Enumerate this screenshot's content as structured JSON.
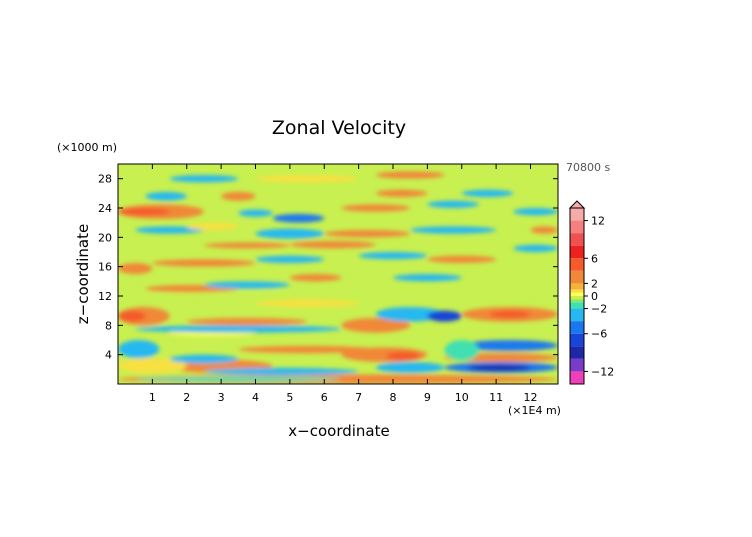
{
  "chart_data": {
    "type": "heatmap",
    "title": "Zonal Velocity",
    "xlabel": "x−coordinate",
    "ylabel": "z−coordinate",
    "x_units": "(×1E4 m)",
    "y_units": "(×1000 m)",
    "time_label": "70800 s",
    "xlim": [
      0,
      12.8
    ],
    "ylim": [
      0,
      30
    ],
    "x_ticks": [
      {
        "value": 1,
        "label": "1"
      },
      {
        "value": 2,
        "label": "2"
      },
      {
        "value": 3,
        "label": "3"
      },
      {
        "value": 4,
        "label": "4"
      },
      {
        "value": 5,
        "label": "5"
      },
      {
        "value": 6,
        "label": "6"
      },
      {
        "value": 7,
        "label": "7"
      },
      {
        "value": 8,
        "label": "8"
      },
      {
        "value": 9,
        "label": "9"
      },
      {
        "value": 10,
        "label": "10"
      },
      {
        "value": 11,
        "label": "11"
      },
      {
        "value": 12,
        "label": "12"
      }
    ],
    "y_ticks": [
      {
        "value": 4,
        "label": "4"
      },
      {
        "value": 8,
        "label": "8"
      },
      {
        "value": 12,
        "label": "12"
      },
      {
        "value": 16,
        "label": "16"
      },
      {
        "value": 20,
        "label": "20"
      },
      {
        "value": 24,
        "label": "24"
      },
      {
        "value": 28,
        "label": "28"
      }
    ],
    "colorbar": {
      "range": [
        -14,
        14
      ],
      "ticks": [
        {
          "value": 12,
          "label": "12"
        },
        {
          "value": 6,
          "label": "6"
        },
        {
          "value": 2,
          "label": "2"
        },
        {
          "value": 0,
          "label": "0"
        },
        {
          "value": -2,
          "label": "−2"
        },
        {
          "value": -6,
          "label": "−6"
        },
        {
          "value": -12,
          "label": "−12"
        }
      ],
      "levels": [
        {
          "from": 14,
          "to": 12,
          "color": "#f7aaaa"
        },
        {
          "from": 12,
          "to": 10,
          "color": "#f58080"
        },
        {
          "from": 10,
          "to": 8,
          "color": "#f05050"
        },
        {
          "from": 8,
          "to": 6,
          "color": "#ee2020"
        },
        {
          "from": 6,
          "to": 4,
          "color": "#f55a2a"
        },
        {
          "from": 4,
          "to": 2,
          "color": "#f08838"
        },
        {
          "from": 2,
          "to": 1,
          "color": "#f4b23a"
        },
        {
          "from": 1,
          "to": 0.5,
          "color": "#f8e040"
        },
        {
          "from": 0.5,
          "to": 0,
          "color": "#ffff55"
        },
        {
          "from": 0,
          "to": -0.5,
          "color": "#c8f050"
        },
        {
          "from": -0.5,
          "to": -1,
          "color": "#90e860"
        },
        {
          "from": -1,
          "to": -2,
          "color": "#40e0b0"
        },
        {
          "from": -2,
          "to": -4,
          "color": "#28b8f0"
        },
        {
          "from": -4,
          "to": -6,
          "color": "#1a78ee"
        },
        {
          "from": -6,
          "to": -8,
          "color": "#1844d8"
        },
        {
          "from": -8,
          "to": -10,
          "color": "#1c28a8"
        },
        {
          "from": -10,
          "to": -12,
          "color": "#7a3cc8"
        },
        {
          "from": -12,
          "to": -14,
          "color": "#f040b8"
        }
      ]
    },
    "bands": [
      {
        "x": [
          0.0,
          12.8
        ],
        "z": [
          0.0,
          1.3
        ],
        "value": 2.5
      },
      {
        "x": [
          0.5,
          6.5
        ],
        "z": [
          0.3,
          1.0
        ],
        "value": -1.5
      },
      {
        "x": [
          1.5,
          4.5
        ],
        "z": [
          1.5,
          3.3
        ],
        "value": 3
      },
      {
        "x": [
          0.0,
          2.0
        ],
        "z": [
          1.5,
          3.5
        ],
        "value": 0.6
      },
      {
        "x": [
          2.5,
          7.0
        ],
        "z": [
          1.2,
          2.2
        ],
        "value": -3
      },
      {
        "x": [
          7.5,
          9.5
        ],
        "z": [
          1.5,
          3.0
        ],
        "value": -3
      },
      {
        "x": [
          9.5,
          12.8
        ],
        "z": [
          1.5,
          3.0
        ],
        "value": -5
      },
      {
        "x": [
          10.2,
          12.0
        ],
        "z": [
          1.8,
          2.6
        ],
        "value": -8
      },
      {
        "x": [
          0.0,
          1.2
        ],
        "z": [
          3.5,
          6.0
        ],
        "value": -3
      },
      {
        "x": [
          1.5,
          3.5
        ],
        "z": [
          2.8,
          4.0
        ],
        "value": -2.5
      },
      {
        "x": [
          3.5,
          7.5
        ],
        "z": [
          4.2,
          5.2
        ],
        "value": 3.5
      },
      {
        "x": [
          6.5,
          9.0
        ],
        "z": [
          3.0,
          5.0
        ],
        "value": 3
      },
      {
        "x": [
          7.8,
          8.8
        ],
        "z": [
          3.2,
          4.4
        ],
        "value": 5
      },
      {
        "x": [
          9.5,
          12.8
        ],
        "z": [
          3.0,
          4.2
        ],
        "value": 3
      },
      {
        "x": [
          10.0,
          12.8
        ],
        "z": [
          4.5,
          6.0
        ],
        "value": -5
      },
      {
        "x": [
          9.5,
          10.5
        ],
        "z": [
          3.2,
          6.0
        ],
        "value": -1.5
      },
      {
        "x": [
          1.5,
          4.0
        ],
        "z": [
          6.5,
          7.5
        ],
        "value": 0.3
      },
      {
        "x": [
          0.5,
          6.5
        ],
        "z": [
          7.0,
          8.0
        ],
        "value": -2.5
      },
      {
        "x": [
          0.0,
          1.5
        ],
        "z": [
          8.0,
          10.5
        ],
        "value": 3.5
      },
      {
        "x": [
          0.0,
          0.8
        ],
        "z": [
          8.5,
          10.0
        ],
        "value": 6
      },
      {
        "x": [
          2.0,
          5.5
        ],
        "z": [
          8.0,
          9.0
        ],
        "value": 3
      },
      {
        "x": [
          6.5,
          8.5
        ],
        "z": [
          7.0,
          9.0
        ],
        "value": 3
      },
      {
        "x": [
          7.5,
          9.5
        ],
        "z": [
          8.5,
          10.5
        ],
        "value": -3
      },
      {
        "x": [
          9.0,
          10.0
        ],
        "z": [
          8.5,
          10.0
        ],
        "value": -6
      },
      {
        "x": [
          10.0,
          12.8
        ],
        "z": [
          8.5,
          10.5
        ],
        "value": 3
      },
      {
        "x": [
          10.8,
          12.0
        ],
        "z": [
          9.0,
          10.0
        ],
        "value": 5
      },
      {
        "x": [
          4.0,
          7.0
        ],
        "z": [
          10.5,
          11.5
        ],
        "value": 0.6
      },
      {
        "x": [
          0.0,
          12.8
        ],
        "z": [
          11.8,
          12.5
        ],
        "value": -0.2
      },
      {
        "x": [
          0.8,
          3.5
        ],
        "z": [
          12.5,
          13.5
        ],
        "value": 3
      },
      {
        "x": [
          2.5,
          5.0
        ],
        "z": [
          13.0,
          14.0
        ],
        "value": -2.5
      },
      {
        "x": [
          5.0,
          6.5
        ],
        "z": [
          14.0,
          15.0
        ],
        "value": 3
      },
      {
        "x": [
          8.0,
          10.0
        ],
        "z": [
          14.0,
          15.0
        ],
        "value": -2
      },
      {
        "x": [
          0.0,
          1.0
        ],
        "z": [
          15.0,
          16.5
        ],
        "value": 3
      },
      {
        "x": [
          1.0,
          4.0
        ],
        "z": [
          16.0,
          17.0
        ],
        "value": 3
      },
      {
        "x": [
          4.0,
          6.0
        ],
        "z": [
          16.5,
          17.5
        ],
        "value": -2.5
      },
      {
        "x": [
          7.0,
          9.0
        ],
        "z": [
          17.0,
          18.0
        ],
        "value": -2.5
      },
      {
        "x": [
          9.0,
          11.0
        ],
        "z": [
          16.5,
          17.5
        ],
        "value": 2.5
      },
      {
        "x": [
          11.5,
          12.8
        ],
        "z": [
          18.0,
          19.0
        ],
        "value": -2.5
      },
      {
        "x": [
          2.5,
          5.0
        ],
        "z": [
          18.5,
          19.3
        ],
        "value": 3
      },
      {
        "x": [
          5.0,
          7.5
        ],
        "z": [
          18.5,
          19.5
        ],
        "value": 3
      },
      {
        "x": [
          6.0,
          8.5
        ],
        "z": [
          20.0,
          21.0
        ],
        "value": 3
      },
      {
        "x": [
          4.0,
          6.0
        ],
        "z": [
          19.8,
          21.2
        ],
        "value": -2.5
      },
      {
        "x": [
          0.5,
          2.5
        ],
        "z": [
          20.5,
          21.5
        ],
        "value": -3
      },
      {
        "x": [
          2.0,
          3.5
        ],
        "z": [
          21.0,
          22.0
        ],
        "value": 0.7
      },
      {
        "x": [
          8.5,
          11.0
        ],
        "z": [
          20.5,
          21.5
        ],
        "value": -2
      },
      {
        "x": [
          12.0,
          12.8
        ],
        "z": [
          20.5,
          21.5
        ],
        "value": 3
      },
      {
        "x": [
          0.0,
          2.5
        ],
        "z": [
          22.5,
          24.5
        ],
        "value": 4
      },
      {
        "x": [
          0.0,
          1.5
        ],
        "z": [
          23.0,
          24.0
        ],
        "value": 6
      },
      {
        "x": [
          3.5,
          4.5
        ],
        "z": [
          22.8,
          23.8
        ],
        "value": -3
      },
      {
        "x": [
          4.5,
          6.0
        ],
        "z": [
          22.0,
          23.2
        ],
        "value": -5
      },
      {
        "x": [
          6.5,
          8.5
        ],
        "z": [
          23.5,
          24.5
        ],
        "value": 3
      },
      {
        "x": [
          9.0,
          10.5
        ],
        "z": [
          24.0,
          25.0
        ],
        "value": -3
      },
      {
        "x": [
          11.5,
          12.8
        ],
        "z": [
          23.0,
          24.0
        ],
        "value": -2.5
      },
      {
        "x": [
          0.8,
          2.0
        ],
        "z": [
          25.0,
          26.2
        ],
        "value": -3
      },
      {
        "x": [
          3.0,
          4.0
        ],
        "z": [
          25.0,
          26.2
        ],
        "value": 3
      },
      {
        "x": [
          7.5,
          9.0
        ],
        "z": [
          25.5,
          26.5
        ],
        "value": 3
      },
      {
        "x": [
          10.0,
          11.5
        ],
        "z": [
          25.5,
          26.5
        ],
        "value": -3
      },
      {
        "x": [
          1.5,
          3.5
        ],
        "z": [
          27.5,
          28.5
        ],
        "value": -2.5
      },
      {
        "x": [
          4.0,
          7.0
        ],
        "z": [
          27.5,
          28.5
        ],
        "value": 0.6
      },
      {
        "x": [
          7.5,
          9.5
        ],
        "z": [
          28.0,
          29.0
        ],
        "value": 3
      }
    ]
  }
}
